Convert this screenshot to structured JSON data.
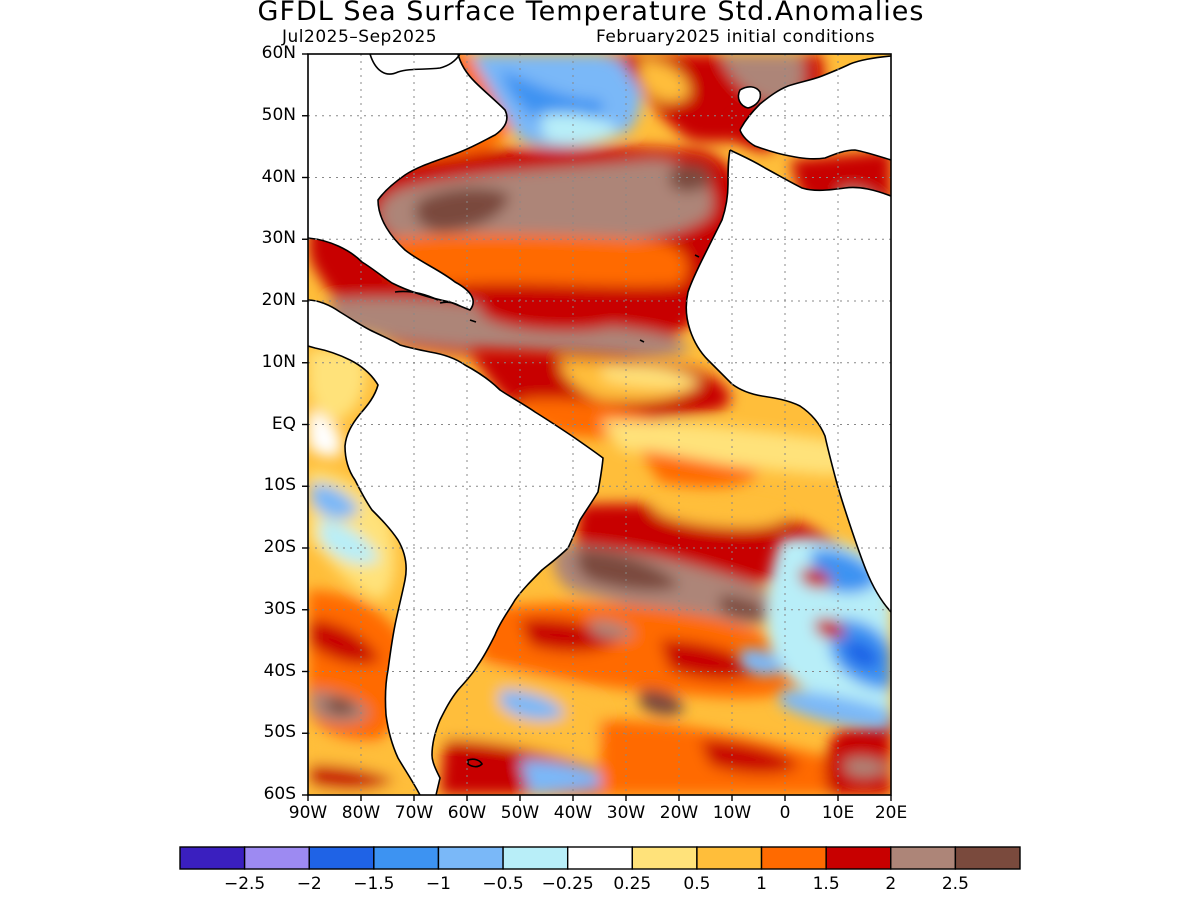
{
  "title": "GFDL Sea Surface Temperature Std.Anomalies",
  "period": "Jul2025–Sep2025",
  "initial_conditions": "February2025 initial conditions",
  "map": {
    "lat_labels": [
      "60N",
      "50N",
      "40N",
      "30N",
      "20N",
      "10N",
      "EQ",
      "10S",
      "20S",
      "30S",
      "40S",
      "50S",
      "60S"
    ],
    "lon_labels": [
      "90W",
      "80W",
      "70W",
      "60W",
      "50W",
      "40W",
      "30W",
      "20W",
      "10W",
      "0",
      "10E",
      "20E"
    ],
    "lat_range": [
      -60,
      60
    ],
    "lon_range": [
      -90,
      20
    ],
    "grid": "dotted",
    "land_color": "#ffffff",
    "coastline_color": "#000000"
  },
  "colorbar": {
    "colors": [
      "#3a1fbf",
      "#9d8af2",
      "#1f63e6",
      "#3d93f2",
      "#7ab8f8",
      "#b8eef8",
      "#ffffff",
      "#ffe27a",
      "#ffbe3a",
      "#ff6a00",
      "#c80000",
      "#ad8578",
      "#7a4a3d"
    ],
    "tick_labels": [
      "−2.5",
      "−2",
      "−1.5",
      "−1",
      "−0.5",
      "−0.25",
      "0.25",
      "0.5",
      "1",
      "1.5",
      "2",
      "2.5"
    ]
  }
}
